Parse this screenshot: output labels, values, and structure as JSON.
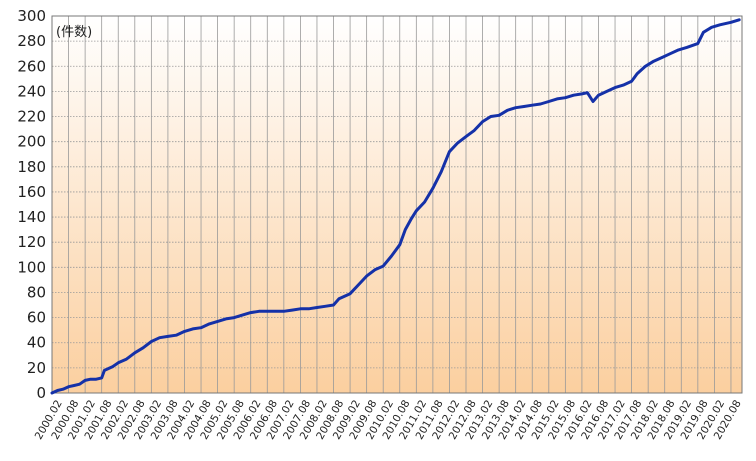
{
  "chart_data": {
    "type": "line",
    "title": "",
    "unit_label": "(件数)",
    "xlabel": "",
    "ylabel": "",
    "ylim": [
      0,
      300
    ],
    "yticks": [
      0,
      20,
      40,
      60,
      80,
      100,
      120,
      140,
      160,
      180,
      200,
      220,
      240,
      260,
      280,
      300
    ],
    "xlim": [
      "2000.02",
      "2020.08"
    ],
    "xticks": [
      "2000.02",
      "2000.08",
      "2001.02",
      "2001.08",
      "2002.02",
      "2002.08",
      "2003.02",
      "2003.08",
      "2004.02",
      "2004.08",
      "2005.02",
      "2005.08",
      "2006.02",
      "2006.08",
      "2007.02",
      "2007.08",
      "2008.02",
      "2008.08",
      "2009.02",
      "2009.08",
      "2010.02",
      "2010.08",
      "2011.02",
      "2011.08",
      "2012.02",
      "2012.08",
      "2013.02",
      "2013.08",
      "2014.02",
      "2014.08",
      "2015.02",
      "2015.08",
      "2016.02",
      "2016.08",
      "2017.02",
      "2017.08",
      "2018.02",
      "2018.08",
      "2019.02",
      "2019.08",
      "2020.02",
      "2020.08"
    ],
    "grid": true,
    "legend": "none",
    "colors": {
      "line": "#1531a8",
      "background_top": "#ffffff",
      "background_bottom": "#fbcf9f",
      "grid": "#999999"
    },
    "series": [
      {
        "points": [
          [
            "2000.02",
            0
          ],
          [
            "2000.04",
            2
          ],
          [
            "2000.06",
            3
          ],
          [
            "2000.08",
            5
          ],
          [
            "2000.10",
            6
          ],
          [
            "2000.12",
            7
          ],
          [
            "2001.02",
            10
          ],
          [
            "2001.04",
            11
          ],
          [
            "2001.06",
            11
          ],
          [
            "2001.08",
            12
          ],
          [
            "2001.09",
            18
          ],
          [
            "2001.12",
            21
          ],
          [
            "2002.02",
            24
          ],
          [
            "2002.05",
            27
          ],
          [
            "2002.08",
            32
          ],
          [
            "2002.11",
            36
          ],
          [
            "2003.02",
            41
          ],
          [
            "2003.05",
            44
          ],
          [
            "2003.08",
            45
          ],
          [
            "2003.11",
            46
          ],
          [
            "2004.02",
            49
          ],
          [
            "2004.05",
            51
          ],
          [
            "2004.08",
            52
          ],
          [
            "2004.11",
            55
          ],
          [
            "2005.02",
            57
          ],
          [
            "2005.05",
            59
          ],
          [
            "2005.08",
            60
          ],
          [
            "2005.11",
            62
          ],
          [
            "2006.02",
            64
          ],
          [
            "2006.05",
            65
          ],
          [
            "2006.08",
            65
          ],
          [
            "2006.11",
            65
          ],
          [
            "2007.02",
            65
          ],
          [
            "2007.05",
            66
          ],
          [
            "2007.08",
            67
          ],
          [
            "2007.11",
            67
          ],
          [
            "2008.02",
            68
          ],
          [
            "2008.05",
            69
          ],
          [
            "2008.08",
            70
          ],
          [
            "2008.10",
            75
          ],
          [
            "2009.02",
            79
          ],
          [
            "2009.05",
            86
          ],
          [
            "2009.08",
            93
          ],
          [
            "2009.11",
            98
          ],
          [
            "2010.02",
            101
          ],
          [
            "2010.05",
            109
          ],
          [
            "2010.08",
            118
          ],
          [
            "2010.10",
            130
          ],
          [
            "2010.12",
            138
          ],
          [
            "2011.02",
            145
          ],
          [
            "2011.05",
            152
          ],
          [
            "2011.08",
            163
          ],
          [
            "2011.11",
            176
          ],
          [
            "2012.02",
            192
          ],
          [
            "2012.05",
            199
          ],
          [
            "2012.08",
            204
          ],
          [
            "2012.11",
            209
          ],
          [
            "2013.02",
            216
          ],
          [
            "2013.05",
            220
          ],
          [
            "2013.08",
            221
          ],
          [
            "2013.11",
            225
          ],
          [
            "2014.02",
            227
          ],
          [
            "2014.05",
            228
          ],
          [
            "2014.08",
            229
          ],
          [
            "2014.11",
            230
          ],
          [
            "2015.02",
            232
          ],
          [
            "2015.05",
            234
          ],
          [
            "2015.08",
            235
          ],
          [
            "2015.11",
            237
          ],
          [
            "2016.02",
            238
          ],
          [
            "2016.04",
            239
          ],
          [
            "2016.06",
            232
          ],
          [
            "2016.08",
            237
          ],
          [
            "2016.11",
            240
          ],
          [
            "2017.02",
            243
          ],
          [
            "2017.05",
            245
          ],
          [
            "2017.08",
            248
          ],
          [
            "2017.10",
            254
          ],
          [
            "2018.01",
            260
          ],
          [
            "2018.04",
            264
          ],
          [
            "2018.07",
            267
          ],
          [
            "2018.10",
            270
          ],
          [
            "2019.01",
            273
          ],
          [
            "2019.04",
            275
          ],
          [
            "2019.08",
            278
          ],
          [
            "2019.10",
            287
          ],
          [
            "2020.01",
            291
          ],
          [
            "2020.04",
            293
          ],
          [
            "2020.08",
            295
          ],
          [
            "2020.11",
            297
          ]
        ]
      }
    ]
  }
}
